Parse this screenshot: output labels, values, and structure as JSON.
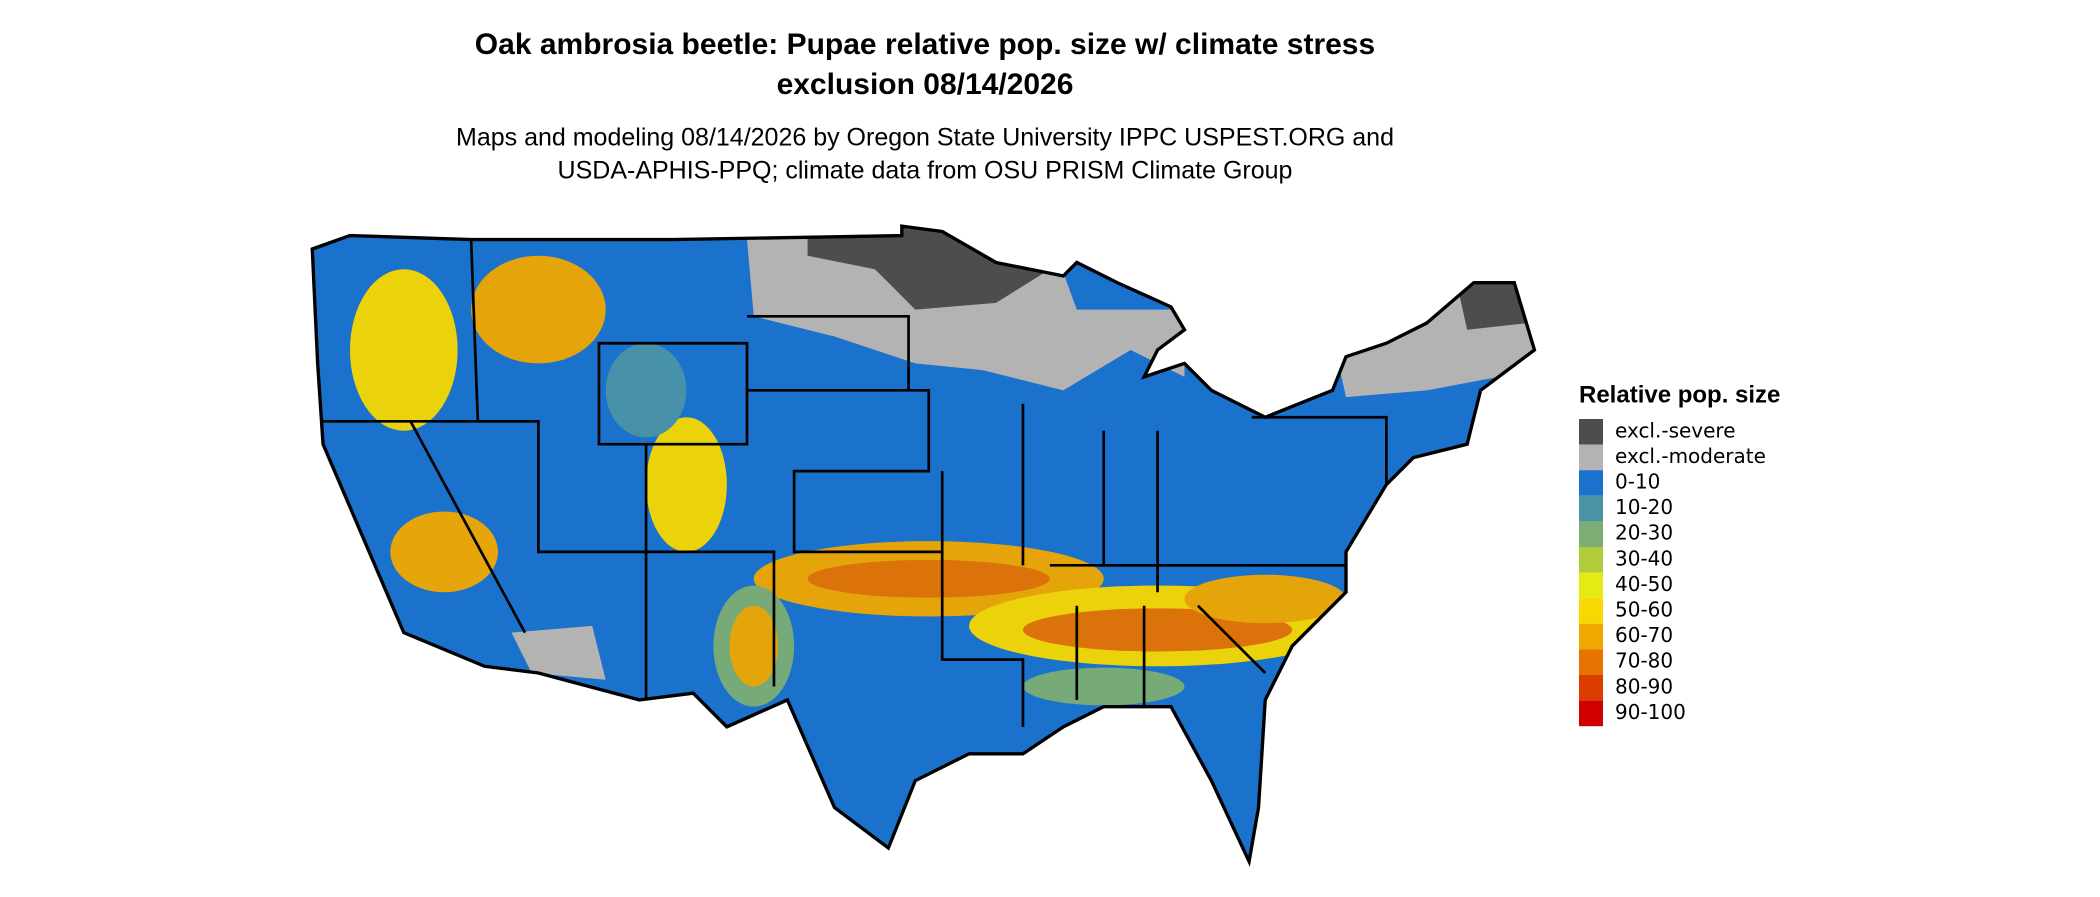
{
  "title": [
    "Oak ambrosia beetle: Pupae relative pop. size w/ climate stress",
    "exclusion 08/14/2026"
  ],
  "subtitle": [
    "Maps and modeling 08/14/2026 by Oregon State University IPPC USPEST.ORG and",
    "USDA-APHIS-PPQ; climate data from OSU PRISM Climate Group"
  ],
  "legend": {
    "title": "Relative pop. size",
    "items": [
      {
        "label": "excl.-severe",
        "color": "#4d4d4d"
      },
      {
        "label": "excl.-moderate",
        "color": "#b3b3b3"
      },
      {
        "label": "0-10",
        "color": "#1a72cc"
      },
      {
        "label": "10-20",
        "color": "#4a92a6"
      },
      {
        "label": "20-30",
        "color": "#7cae74"
      },
      {
        "label": "30-40",
        "color": "#b0cc3a"
      },
      {
        "label": "40-50",
        "color": "#e6ea14"
      },
      {
        "label": "50-60",
        "color": "#f7d800"
      },
      {
        "label": "60-70",
        "color": "#f0a800"
      },
      {
        "label": "70-80",
        "color": "#e67200"
      },
      {
        "label": "80-90",
        "color": "#dc3c00"
      },
      {
        "label": "90-100",
        "color": "#d00000"
      }
    ]
  }
}
